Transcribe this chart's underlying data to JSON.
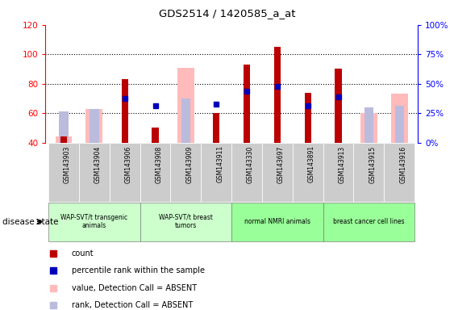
{
  "title": "GDS2514 / 1420585_a_at",
  "samples": [
    "GSM143903",
    "GSM143904",
    "GSM143906",
    "GSM143908",
    "GSM143909",
    "GSM143911",
    "GSM143330",
    "GSM143697",
    "GSM143891",
    "GSM143913",
    "GSM143915",
    "GSM143916"
  ],
  "count": [
    44,
    null,
    83,
    50,
    null,
    60,
    93,
    105,
    74,
    90,
    null,
    null
  ],
  "percentile_rank": [
    null,
    null,
    70,
    65,
    null,
    66,
    75,
    78,
    65,
    71,
    null,
    null
  ],
  "value_absent": [
    44,
    63,
    null,
    null,
    91,
    null,
    null,
    null,
    null,
    null,
    60,
    73
  ],
  "rank_absent": [
    61,
    63,
    null,
    null,
    70,
    null,
    null,
    null,
    null,
    null,
    64,
    65
  ],
  "ylim": [
    40,
    120
  ],
  "y2lim": [
    0,
    100
  ],
  "yticks_left": [
    40,
    60,
    80,
    100,
    120
  ],
  "y2ticks": [
    0,
    25,
    50,
    75,
    100
  ],
  "y2ticklabels": [
    "0%",
    "25%",
    "50%",
    "75%",
    "100%"
  ],
  "color_count": "#bb0000",
  "color_percentile": "#0000bb",
  "color_value_absent": "#ffbbbb",
  "color_rank_absent": "#bbbbdd",
  "group_info": [
    {
      "start": 0,
      "end": 2,
      "label": "WAP-SVT/t transgenic\nanimals",
      "color": "#ccffcc"
    },
    {
      "start": 3,
      "end": 5,
      "label": "WAP-SVT/t breast\ntumors",
      "color": "#ccffcc"
    },
    {
      "start": 6,
      "end": 8,
      "label": "normal NMRI animals",
      "color": "#99ff99"
    },
    {
      "start": 9,
      "end": 11,
      "label": "breast cancer cell lines",
      "color": "#99ff99"
    }
  ],
  "sample_cell_color": "#cccccc",
  "disease_state_label": "disease state",
  "legend_items": [
    {
      "color": "#bb0000",
      "marker": "s",
      "label": "count"
    },
    {
      "color": "#0000bb",
      "marker": "s",
      "label": "percentile rank within the sample"
    },
    {
      "color": "#ffbbbb",
      "marker": "s",
      "label": "value, Detection Call = ABSENT"
    },
    {
      "color": "#bbbbdd",
      "marker": "s",
      "label": "rank, Detection Call = ABSENT"
    }
  ]
}
